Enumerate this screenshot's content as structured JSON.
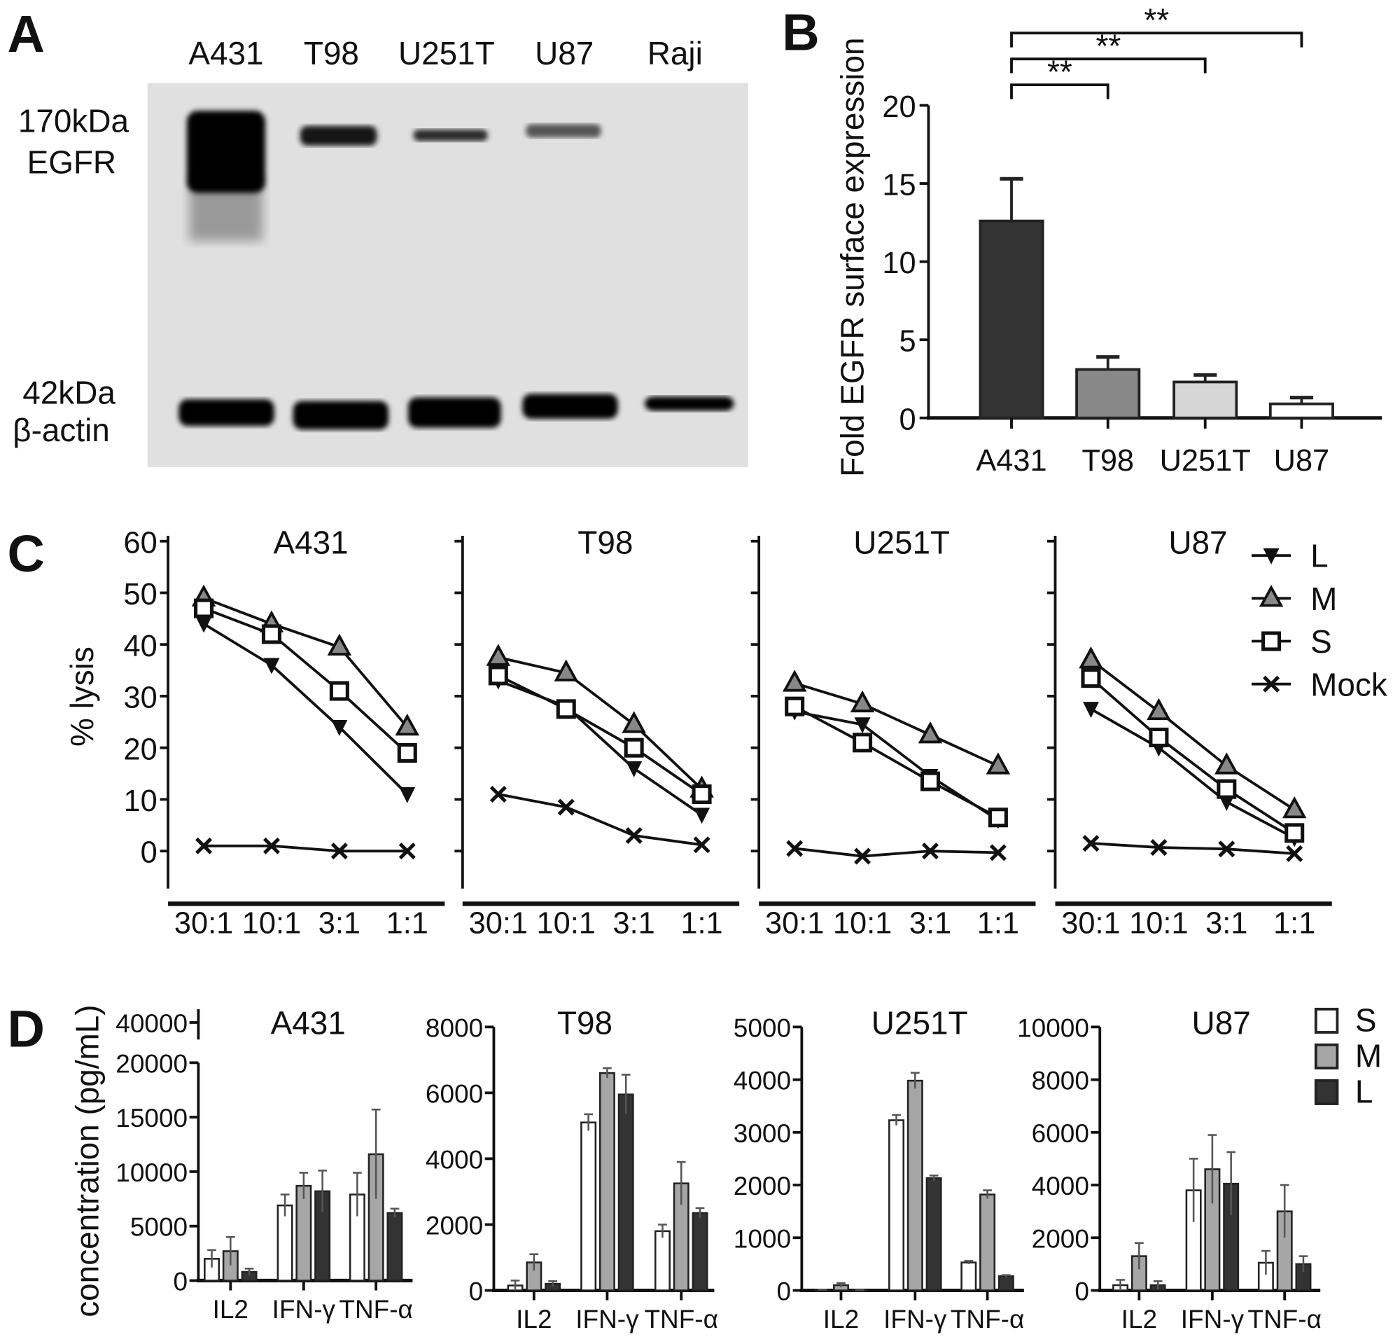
{
  "panel_letters": {
    "a": "A",
    "b": "B",
    "c": "C",
    "d": "D"
  },
  "panel_a": {
    "lanes": [
      "A431",
      "T98",
      "U251T",
      "U87",
      "Raji"
    ],
    "markers": [
      {
        "size": "170kDa",
        "protein": "EGFR"
      },
      {
        "size": "42kDa",
        "protein": "β-actin"
      }
    ]
  },
  "chart_data": [
    {
      "panel": "B",
      "type": "bar",
      "categories": [
        "A431",
        "T98",
        "U251T",
        "U87"
      ],
      "values": [
        12.6,
        3.1,
        2.3,
        0.9
      ],
      "errors": [
        2.7,
        0.8,
        0.45,
        0.4
      ],
      "colors": [
        "#333333",
        "#888888",
        "#d6d6d6",
        "#ffffff"
      ],
      "ylabel": "Fold EGFR surface expression",
      "ylim": [
        0,
        20
      ],
      "yticks": [
        "0",
        "5",
        "10",
        "15",
        "20"
      ],
      "significance": [
        {
          "from": "A431",
          "to": "T98",
          "label": "**"
        },
        {
          "from": "A431",
          "to": "U251T",
          "label": "**"
        },
        {
          "from": "A431",
          "to": "U87",
          "label": "**"
        }
      ]
    },
    {
      "panel": "C",
      "type": "line",
      "ylabel": "% lysis",
      "ylim": [
        0,
        60
      ],
      "yticks": [
        "0",
        "10",
        "20",
        "30",
        "40",
        "50",
        "60"
      ],
      "categories": [
        "30:1",
        "10:1",
        "3:1",
        "1:1"
      ],
      "legend": [
        "L",
        "M",
        "S",
        "Mock"
      ],
      "legend_position": "top-right",
      "subplots": [
        {
          "title": "A431",
          "series": [
            {
              "name": "L",
              "values": [
                44,
                36,
                24,
                11
              ]
            },
            {
              "name": "M",
              "values": [
                49,
                44,
                39.5,
                24
              ]
            },
            {
              "name": "S",
              "values": [
                47,
                42,
                31,
                19
              ]
            },
            {
              "name": "Mock",
              "values": [
                1,
                1,
                0,
                0
              ]
            }
          ]
        },
        {
          "title": "T98",
          "series": [
            {
              "name": "L",
              "values": [
                33,
                28,
                16,
                7
              ]
            },
            {
              "name": "M",
              "values": [
                37.5,
                34.5,
                24.5,
                12
              ]
            },
            {
              "name": "S",
              "values": [
                34,
                27.5,
                20,
                11
              ]
            },
            {
              "name": "Mock",
              "values": [
                11,
                8.5,
                3,
                1.2
              ]
            }
          ]
        },
        {
          "title": "U251T",
          "series": [
            {
              "name": "L",
              "values": [
                27,
                24.5,
                14.5,
                6
              ]
            },
            {
              "name": "M",
              "values": [
                32.5,
                28.5,
                22.5,
                16.5
              ]
            },
            {
              "name": "S",
              "values": [
                28,
                21,
                13.5,
                6.5
              ]
            },
            {
              "name": "Mock",
              "values": [
                0.5,
                -1,
                0,
                -0.3
              ]
            }
          ]
        },
        {
          "title": "U87",
          "series": [
            {
              "name": "L",
              "values": [
                27.5,
                20,
                9.5,
                2.5
              ]
            },
            {
              "name": "M",
              "values": [
                37,
                27,
                16.5,
                8
              ]
            },
            {
              "name": "S",
              "values": [
                33.5,
                22,
                12,
                3.5
              ]
            },
            {
              "name": "Mock",
              "values": [
                1.5,
                0.7,
                0.4,
                -0.5
              ]
            }
          ]
        }
      ]
    },
    {
      "panel": "D",
      "type": "bar",
      "ylabel": "concentration (pg/mL)",
      "categories": [
        "IL2",
        "IFN-γ",
        "TNF-α"
      ],
      "legend": [
        "S",
        "M",
        "L"
      ],
      "legend_position": "top-right",
      "colors": {
        "S": "#ffffff",
        "M": "#a6a6a6",
        "L": "#333333"
      },
      "subplots": [
        {
          "title": "A431",
          "ylim": [
            0,
            40000
          ],
          "axis_break": [
            20000,
            40000
          ],
          "yticks": [
            "0",
            "5000",
            "10000",
            "15000",
            "20000",
            "40000"
          ],
          "series": [
            {
              "name": "S",
              "values": [
                2000,
                6900,
                7900
              ],
              "errors": [
                800,
                1000,
                2000
              ]
            },
            {
              "name": "M",
              "values": [
                2700,
                8700,
                11600
              ],
              "errors": [
                1300,
                1200,
                4100
              ]
            },
            {
              "name": "L",
              "values": [
                800,
                8200,
                6200
              ],
              "errors": [
                300,
                1900,
                400
              ]
            }
          ]
        },
        {
          "title": "T98",
          "ylim": [
            0,
            8000
          ],
          "yticks": [
            "0",
            "2000",
            "4000",
            "6000",
            "8000"
          ],
          "series": [
            {
              "name": "S",
              "values": [
                150,
                5100,
                1800
              ],
              "errors": [
                150,
                250,
                200
              ]
            },
            {
              "name": "M",
              "values": [
                850,
                6600,
                3250
              ],
              "errors": [
                250,
                150,
                650
              ]
            },
            {
              "name": "L",
              "values": [
                200,
                5950,
                2350
              ],
              "errors": [
                80,
                600,
                150
              ]
            }
          ]
        },
        {
          "title": "U251T",
          "ylim": [
            0,
            5000
          ],
          "yticks": [
            "0",
            "1000",
            "2000",
            "3000",
            "4000",
            "5000"
          ],
          "series": [
            {
              "name": "S",
              "values": [
                10,
                3230,
                530
              ],
              "errors": [
                5,
                100,
                30
              ]
            },
            {
              "name": "M",
              "values": [
                100,
                3980,
                1820
              ],
              "errors": [
                40,
                150,
                80
              ]
            },
            {
              "name": "L",
              "values": [
                5,
                2130,
                270
              ],
              "errors": [
                3,
                50,
                20
              ]
            }
          ]
        },
        {
          "title": "U87",
          "ylim": [
            0,
            10000
          ],
          "yticks": [
            "0",
            "2000",
            "4000",
            "6000",
            "8000",
            "10000"
          ],
          "series": [
            {
              "name": "S",
              "values": [
                200,
                3800,
                1050
              ],
              "errors": [
                200,
                1200,
                450
              ]
            },
            {
              "name": "M",
              "values": [
                1300,
                4600,
                3000
              ],
              "errors": [
                500,
                1300,
                1000
              ]
            },
            {
              "name": "L",
              "values": [
                200,
                4050,
                1000
              ],
              "errors": [
                150,
                1200,
                300
              ]
            }
          ]
        }
      ]
    }
  ]
}
